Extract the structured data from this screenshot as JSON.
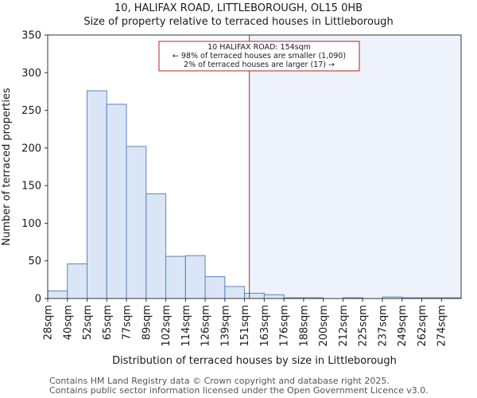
{
  "chart_data": {
    "type": "bar",
    "title": "10, HALIFAX ROAD, LITTLEBOROUGH, OL15 0HB",
    "subtitle": "Size of property relative to terraced houses in Littleborough",
    "xlabel": "Distribution of terraced houses by size in Littleborough",
    "ylabel": "Number of terraced properties",
    "ylim": [
      0,
      350
    ],
    "yticks": [
      0,
      50,
      100,
      150,
      200,
      250,
      300,
      350
    ],
    "categories": [
      "28sqm",
      "40sqm",
      "52sqm",
      "65sqm",
      "77sqm",
      "89sqm",
      "102sqm",
      "114sqm",
      "126sqm",
      "139sqm",
      "151sqm",
      "163sqm",
      "176sqm",
      "188sqm",
      "200sqm",
      "212sqm",
      "225sqm",
      "237sqm",
      "249sqm",
      "262sqm",
      "274sqm"
    ],
    "values": [
      10,
      46,
      276,
      258,
      202,
      139,
      56,
      57,
      29,
      16,
      7,
      5,
      1,
      1,
      0,
      1,
      0,
      2,
      1,
      1,
      1
    ],
    "marker_value_sqm": 154,
    "annotation": {
      "line1": "10 HALIFAX ROAD: 154sqm",
      "line2": "← 98% of terraced houses are smaller (1,090)",
      "line3": "2% of terraced houses are larger (17) →"
    },
    "colors": {
      "bar_fill": "#dae6f5",
      "bar_stroke": "#5b84c2",
      "marker": "#b22222",
      "highlight": "#eef3fb"
    }
  },
  "footer": {
    "line1": "Contains HM Land Registry data © Crown copyright and database right 2025.",
    "line2": "Contains public sector information licensed under the Open Government Licence v3.0."
  }
}
